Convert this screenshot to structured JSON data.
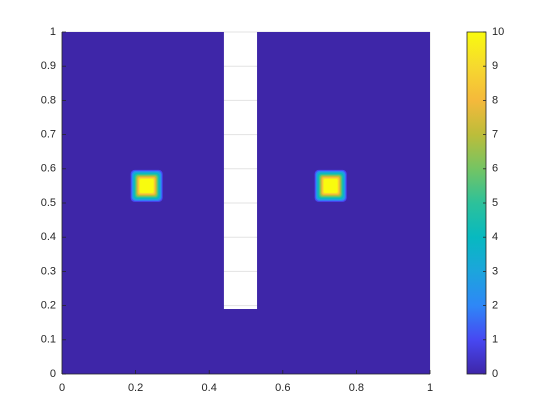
{
  "chart_data": {
    "type": "contour",
    "xlim": [
      0,
      1
    ],
    "ylim": [
      0,
      1
    ],
    "xticks": [
      0,
      0.2,
      0.4,
      0.6,
      0.8,
      1
    ],
    "yticks": [
      0,
      0.1,
      0.2,
      0.3,
      0.4,
      0.5,
      0.6,
      0.7,
      0.8,
      0.9,
      1
    ],
    "grid": true,
    "background_value": 0,
    "spots": [
      {
        "x": 0.23,
        "y": 0.55,
        "value": 10
      },
      {
        "x": 0.73,
        "y": 0.55,
        "value": 10
      }
    ],
    "nan_region": {
      "x": [
        0.44,
        0.53
      ],
      "y": [
        0.19,
        1
      ]
    },
    "colorbar": {
      "clim": [
        0,
        10
      ],
      "ticks": [
        0,
        1,
        2,
        3,
        4,
        5,
        6,
        7,
        8,
        9,
        10
      ]
    },
    "colormap": [
      "#3e26a8",
      "#4748f2",
      "#2e87f7",
      "#1ca5dc",
      "#07b9c0",
      "#2dc19a",
      "#74c463",
      "#bcbd3a",
      "#f5b93b",
      "#f6d92e",
      "#f9fb0e"
    ]
  }
}
